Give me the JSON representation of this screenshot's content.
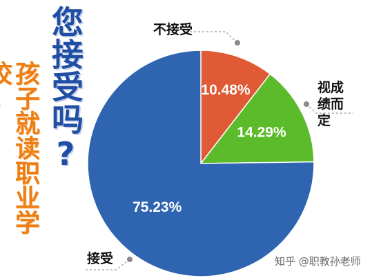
{
  "title": "您接受吗?",
  "subtitle": "孩子就读职业学校,",
  "watermark": "知乎 @职教孙老师",
  "chart_data": {
    "type": "pie",
    "slices": [
      {
        "label": "不接受",
        "value": 10.48,
        "display": "10.48%",
        "color": "#e05a35"
      },
      {
        "label": "视成绩而定",
        "value": 14.29,
        "display": "14.29%",
        "color": "#5cbb2b"
      },
      {
        "label": "接受",
        "value": 75.23,
        "display": "75.23%",
        "color": "#2f64b1"
      }
    ],
    "start_angle_deg": 0,
    "direction": "clockwise",
    "legend": "callouts"
  }
}
